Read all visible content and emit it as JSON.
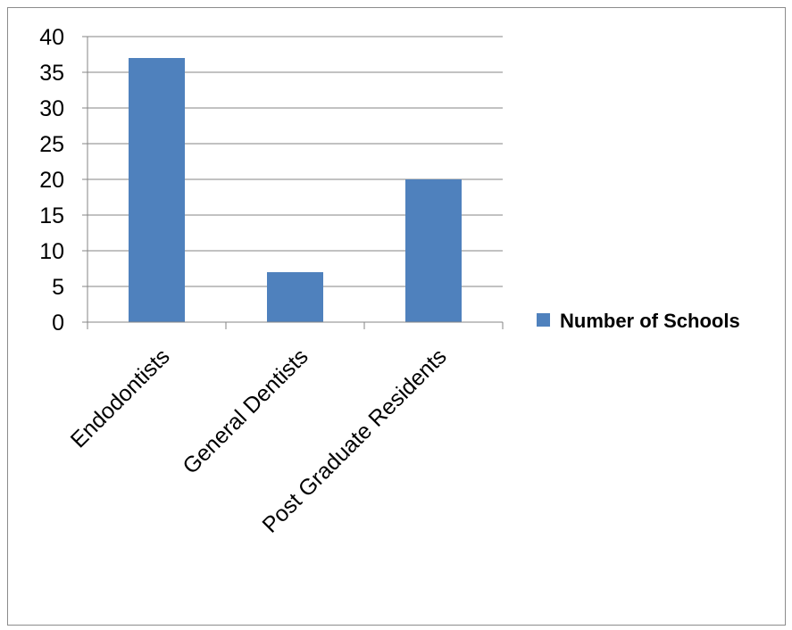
{
  "chart_data": {
    "type": "bar",
    "title": "",
    "xlabel": "",
    "ylabel": "",
    "categories": [
      "Endodontists",
      "General Dentists",
      "Post Graduate Residents"
    ],
    "series": [
      {
        "name": "Number of Schools",
        "values": [
          37,
          7,
          20
        ],
        "color": "#4f81bd"
      }
    ],
    "ylim": [
      0,
      40
    ],
    "yticks": [
      0,
      5,
      10,
      15,
      20,
      25,
      30,
      35,
      40
    ],
    "grid": true,
    "legend_position": "right"
  }
}
